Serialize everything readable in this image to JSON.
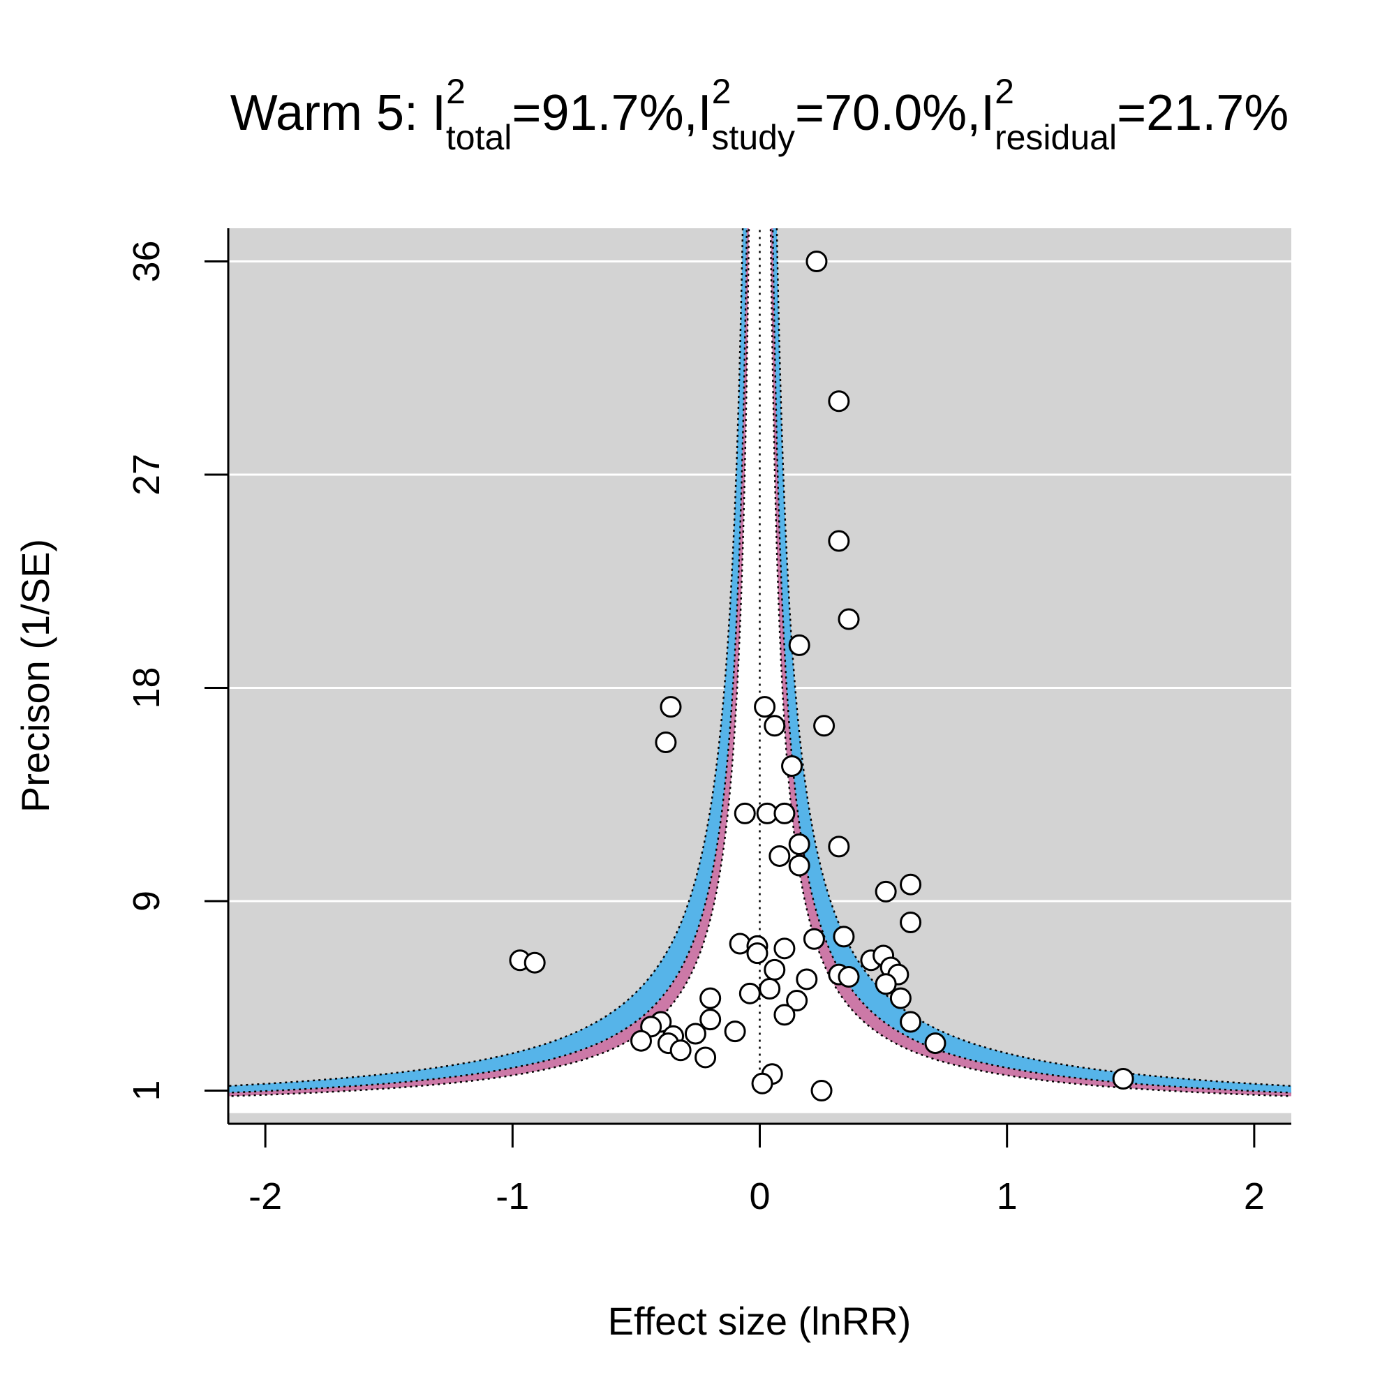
{
  "chart_data": {
    "type": "scatter",
    "title": {
      "prefix": "Warm 5: ",
      "parts": [
        {
          "base": "I",
          "sup": "2",
          "sub": "total",
          "value": "=91.7%,"
        },
        {
          "base": "I",
          "sup": "2",
          "sub": "study",
          "value": "=70.0%,"
        },
        {
          "base": "I",
          "sup": "2",
          "sub": "residual",
          "value": "=21.7%"
        }
      ]
    },
    "xlabel": "Effect size (lnRR)",
    "ylabel": "Precison (1/SE)",
    "xlim": [
      -2.15,
      2.15
    ],
    "ylim": [
      -0.4,
      37.4
    ],
    "xticks": [
      -2,
      -1,
      0,
      1,
      2
    ],
    "xtick_labels": [
      "-2",
      "-1",
      "0",
      "1",
      "2"
    ],
    "yticks": [
      1,
      9,
      18,
      27,
      36
    ],
    "ytick_labels": [
      "1",
      "9",
      "18",
      "27",
      "36"
    ],
    "grid": "horizontal",
    "reference_line_x": 0,
    "contours": {
      "outer_z": 2.576,
      "middle_z": 1.96,
      "inner_z": 1.645,
      "band_outer_color": "#56b4e9",
      "band_inner_color": "#cc79a7",
      "inner_fill": "#ffffff",
      "background": "#d3d3d3"
    },
    "points": [
      {
        "x": 0.23,
        "y": 36.0
      },
      {
        "x": 0.32,
        "y": 30.1
      },
      {
        "x": 0.32,
        "y": 24.2
      },
      {
        "x": 0.36,
        "y": 20.9
      },
      {
        "x": 0.16,
        "y": 19.8
      },
      {
        "x": -0.36,
        "y": 17.2
      },
      {
        "x": 0.02,
        "y": 17.2
      },
      {
        "x": -0.38,
        "y": 15.7
      },
      {
        "x": 0.06,
        "y": 16.4
      },
      {
        "x": 0.26,
        "y": 16.4
      },
      {
        "x": 0.13,
        "y": 14.7
      },
      {
        "x": -0.06,
        "y": 12.7
      },
      {
        "x": 0.03,
        "y": 12.7
      },
      {
        "x": 0.1,
        "y": 12.7
      },
      {
        "x": 0.16,
        "y": 11.4
      },
      {
        "x": 0.32,
        "y": 11.3
      },
      {
        "x": 0.08,
        "y": 10.9
      },
      {
        "x": 0.16,
        "y": 10.5
      },
      {
        "x": 0.61,
        "y": 9.7
      },
      {
        "x": 0.51,
        "y": 9.4
      },
      {
        "x": 0.61,
        "y": 8.1
      },
      {
        "x": 0.34,
        "y": 7.5
      },
      {
        "x": 0.22,
        "y": 7.4
      },
      {
        "x": -0.08,
        "y": 7.2
      },
      {
        "x": -0.01,
        "y": 7.1
      },
      {
        "x": 0.1,
        "y": 7.0
      },
      {
        "x": -0.01,
        "y": 6.8
      },
      {
        "x": 0.45,
        "y": 6.5
      },
      {
        "x": 0.5,
        "y": 6.7
      },
      {
        "x": 0.53,
        "y": 6.2
      },
      {
        "x": 0.56,
        "y": 5.9
      },
      {
        "x": 0.32,
        "y": 5.9
      },
      {
        "x": 0.36,
        "y": 5.8
      },
      {
        "x": 0.51,
        "y": 5.5
      },
      {
        "x": 0.06,
        "y": 6.1
      },
      {
        "x": 0.19,
        "y": 5.7
      },
      {
        "x": 0.04,
        "y": 5.3
      },
      {
        "x": -0.04,
        "y": 5.1
      },
      {
        "x": -0.2,
        "y": 4.9
      },
      {
        "x": 0.15,
        "y": 4.8
      },
      {
        "x": 0.57,
        "y": 4.9
      },
      {
        "x": 0.1,
        "y": 4.2
      },
      {
        "x": -0.2,
        "y": 4.0
      },
      {
        "x": -0.4,
        "y": 3.9
      },
      {
        "x": -0.44,
        "y": 3.7
      },
      {
        "x": 0.61,
        "y": 3.9
      },
      {
        "x": -0.1,
        "y": 3.5
      },
      {
        "x": -0.26,
        "y": 3.4
      },
      {
        "x": -0.35,
        "y": 3.3
      },
      {
        "x": -0.48,
        "y": 3.1
      },
      {
        "x": -0.37,
        "y": 3.0
      },
      {
        "x": -0.32,
        "y": 2.7
      },
      {
        "x": 0.71,
        "y": 3.0
      },
      {
        "x": -0.22,
        "y": 2.4
      },
      {
        "x": -0.97,
        "y": 6.5
      },
      {
        "x": -0.91,
        "y": 6.4
      },
      {
        "x": 1.47,
        "y": 1.5
      },
      {
        "x": 0.05,
        "y": 1.7
      },
      {
        "x": 0.01,
        "y": 1.3
      },
      {
        "x": 0.25,
        "y": 1.0
      }
    ]
  }
}
